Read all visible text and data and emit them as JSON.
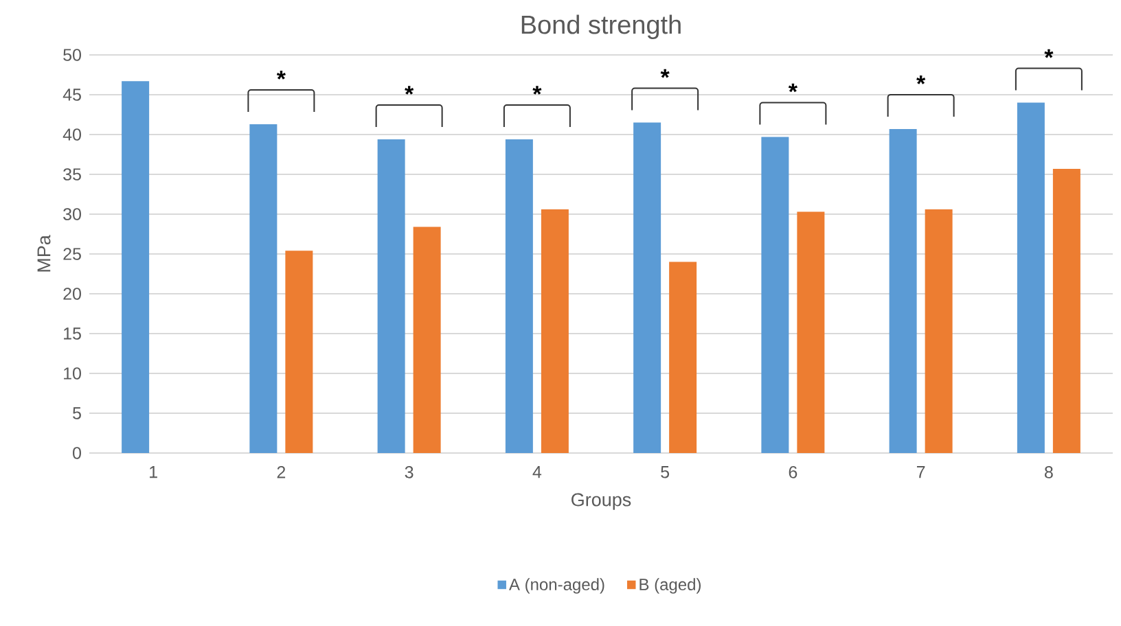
{
  "chart_data": {
    "type": "bar",
    "title": "Bond strength",
    "xlabel": "Groups",
    "ylabel": "MPa",
    "categories": [
      "1",
      "2",
      "3",
      "4",
      "5",
      "6",
      "7",
      "8"
    ],
    "series": [
      {
        "name": "A (non-aged)",
        "color": "#5b9bd5",
        "values": [
          46.7,
          41.3,
          39.4,
          39.4,
          41.5,
          39.7,
          40.7,
          44.0
        ]
      },
      {
        "name": "B (aged)",
        "color": "#ed7d31",
        "values": [
          null,
          25.4,
          28.4,
          30.6,
          24.0,
          30.3,
          30.6,
          35.7
        ]
      }
    ],
    "ylim": [
      0,
      50
    ],
    "yticks": [
      0,
      5,
      10,
      15,
      20,
      25,
      30,
      35,
      40,
      45,
      50
    ],
    "grid": "y",
    "legend": "bottom",
    "annotations": [
      "*",
      "*",
      "*",
      "*",
      "*",
      "*",
      "*"
    ]
  }
}
